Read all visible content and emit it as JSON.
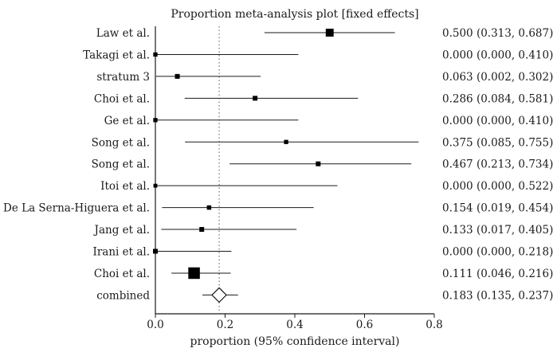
{
  "chart_data": {
    "type": "forest",
    "title": "Proportion meta-analysis plot [fixed effects]",
    "xlabel": "proportion (95% confidence interval)",
    "xlim": [
      0,
      0.8
    ],
    "xticks": [
      "0.0",
      "0.2",
      "0.4",
      "0.6",
      "0.8"
    ],
    "reference_line": 0.183,
    "studies": [
      {
        "label": "Law et al.",
        "est": 0.5,
        "lo": 0.313,
        "hi": 0.687,
        "weight": 3,
        "text": "0.500 (0.313, 0.687)"
      },
      {
        "label": "Takagi et al.",
        "est": 0.0,
        "lo": 0.0,
        "hi": 0.41,
        "weight": 1,
        "text": "0.000 (0.000, 0.410)"
      },
      {
        "label": "stratum 3",
        "est": 0.063,
        "lo": 0.002,
        "hi": 0.302,
        "weight": 1.3,
        "text": "0.063 (0.002, 0.302)"
      },
      {
        "label": "Choi et al.",
        "est": 0.286,
        "lo": 0.084,
        "hi": 0.581,
        "weight": 1.3,
        "text": "0.286 (0.084, 0.581)"
      },
      {
        "label": "Ge et al.",
        "est": 0.0,
        "lo": 0.0,
        "hi": 0.41,
        "weight": 1,
        "text": "0.000 (0.000, 0.410)"
      },
      {
        "label": "Song et al.",
        "est": 0.375,
        "lo": 0.085,
        "hi": 0.755,
        "weight": 1,
        "text": "0.375 (0.085, 0.755)"
      },
      {
        "label": "Song et al.",
        "est": 0.467,
        "lo": 0.213,
        "hi": 0.734,
        "weight": 1.3,
        "text": "0.467 (0.213, 0.734)"
      },
      {
        "label": "Itoi et al.",
        "est": 0.0,
        "lo": 0.0,
        "hi": 0.522,
        "weight": 0.8,
        "text": "0.000 (0.000, 0.522)"
      },
      {
        "label": "De La Serna-Higuera et al.",
        "est": 0.154,
        "lo": 0.019,
        "hi": 0.454,
        "weight": 1.1,
        "text": "0.154 (0.019, 0.454)"
      },
      {
        "label": "Jang et al.",
        "est": 0.133,
        "lo": 0.017,
        "hi": 0.405,
        "weight": 1.3,
        "text": "0.133 (0.017, 0.405)"
      },
      {
        "label": "Irani et al.",
        "est": 0.0,
        "lo": 0.0,
        "hi": 0.218,
        "weight": 1.3,
        "text": "0.000 (0.000, 0.218)"
      },
      {
        "label": "Choi et al.",
        "est": 0.111,
        "lo": 0.046,
        "hi": 0.216,
        "weight": 5,
        "text": "0.111 (0.046, 0.216)"
      }
    ],
    "combined": {
      "label": "combined",
      "est": 0.183,
      "lo": 0.135,
      "hi": 0.237,
      "text": "0.183 (0.135, 0.237)"
    }
  }
}
